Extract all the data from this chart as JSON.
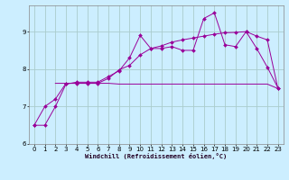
{
  "xlabel": "Windchill (Refroidissement éolien,°C)",
  "bg_color": "#cceeff",
  "grid_color": "#aacccc",
  "line_color": "#990099",
  "xlim": [
    -0.5,
    23.5
  ],
  "ylim": [
    6.0,
    9.7
  ],
  "yticks": [
    6,
    7,
    8,
    9
  ],
  "xticks": [
    0,
    1,
    2,
    3,
    4,
    5,
    6,
    7,
    8,
    9,
    10,
    11,
    12,
    13,
    14,
    15,
    16,
    17,
    18,
    19,
    20,
    21,
    22,
    23
  ],
  "series1_x": [
    0,
    1,
    2,
    3,
    4,
    5,
    6,
    7,
    8,
    9,
    10,
    11,
    12,
    13,
    14,
    15,
    16,
    17,
    18,
    19,
    20,
    21,
    22,
    23
  ],
  "series1_y": [
    6.5,
    6.5,
    7.0,
    7.6,
    7.65,
    7.65,
    7.65,
    7.8,
    7.95,
    8.3,
    8.9,
    8.55,
    8.55,
    8.6,
    8.5,
    8.5,
    9.35,
    9.5,
    8.65,
    8.6,
    9.0,
    8.55,
    8.05,
    7.5
  ],
  "series2_x": [
    0,
    1,
    2,
    3,
    4,
    5,
    6,
    7,
    8,
    9,
    10,
    11,
    12,
    13,
    14,
    15,
    16,
    17,
    18,
    19,
    20,
    21,
    22,
    23
  ],
  "series2_y": [
    6.5,
    7.0,
    7.2,
    7.62,
    7.62,
    7.62,
    7.62,
    7.75,
    7.98,
    8.1,
    8.38,
    8.55,
    8.62,
    8.72,
    8.78,
    8.83,
    8.88,
    8.93,
    8.97,
    8.98,
    9.0,
    8.88,
    8.78,
    7.48
  ],
  "series3_x": [
    2,
    3,
    4,
    5,
    6,
    7,
    8,
    9,
    10,
    11,
    12,
    13,
    14,
    15,
    16,
    17,
    18,
    19,
    20,
    21,
    22,
    23
  ],
  "series3_y": [
    7.62,
    7.62,
    7.62,
    7.62,
    7.62,
    7.62,
    7.6,
    7.6,
    7.6,
    7.6,
    7.6,
    7.6,
    7.6,
    7.6,
    7.6,
    7.6,
    7.6,
    7.6,
    7.6,
    7.6,
    7.6,
    7.48
  ]
}
